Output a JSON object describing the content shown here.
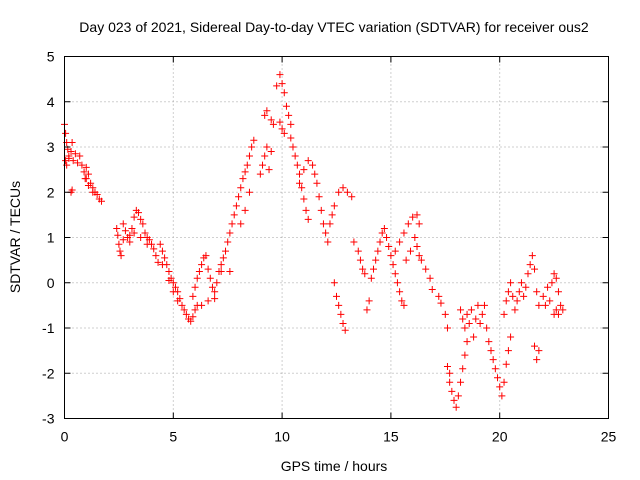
{
  "chart_data": {
    "type": "scatter",
    "title": "Day 023 of 2021, Sidereal Day-to-day VTEC variation (SDTVAR) for receiver ous2",
    "xlabel": "GPS time / hours",
    "ylabel": "SDTVAR / TECUs",
    "xlim": [
      0,
      25
    ],
    "ylim": [
      -3,
      5
    ],
    "xticks": [
      "0",
      "5",
      "10",
      "15",
      "20",
      "25"
    ],
    "yticks": [
      "-3",
      "-2",
      "-1",
      "0",
      "1",
      "2",
      "3",
      "4",
      "5"
    ],
    "grid": true,
    "marker": "+",
    "color": "#ff0000",
    "series": [
      {
        "name": "ous2",
        "points": [
          [
            0.0,
            3.5
          ],
          [
            0.05,
            3.3
          ],
          [
            0.1,
            3.1
          ],
          [
            0.15,
            2.95
          ],
          [
            0.2,
            2.8
          ],
          [
            0.05,
            2.7
          ],
          [
            0.1,
            2.6
          ],
          [
            0.2,
            2.75
          ],
          [
            0.3,
            2.9
          ],
          [
            0.35,
            3.1
          ],
          [
            0.4,
            2.7
          ],
          [
            0.5,
            2.85
          ],
          [
            0.6,
            2.65
          ],
          [
            0.3,
            2.0
          ],
          [
            0.35,
            2.05
          ],
          [
            0.7,
            2.8
          ],
          [
            0.8,
            2.6
          ],
          [
            0.9,
            2.45
          ],
          [
            0.95,
            2.3
          ],
          [
            1.0,
            2.55
          ],
          [
            1.1,
            2.4
          ],
          [
            1.2,
            2.2
          ],
          [
            1.3,
            2.1
          ],
          [
            1.4,
            2.0
          ],
          [
            1.5,
            1.95
          ],
          [
            1.6,
            1.85
          ],
          [
            1.7,
            1.8
          ],
          [
            1.0,
            2.3
          ],
          [
            1.1,
            2.15
          ],
          [
            1.3,
            2.0
          ],
          [
            2.4,
            1.2
          ],
          [
            2.45,
            1.05
          ],
          [
            2.5,
            0.85
          ],
          [
            2.55,
            0.7
          ],
          [
            2.6,
            0.6
          ],
          [
            2.7,
            1.3
          ],
          [
            2.8,
            1.15
          ],
          [
            2.9,
            1.0
          ],
          [
            3.0,
            0.9
          ],
          [
            3.1,
            1.2
          ],
          [
            3.2,
            1.45
          ],
          [
            3.3,
            1.6
          ],
          [
            3.4,
            1.55
          ],
          [
            3.5,
            1.4
          ],
          [
            3.6,
            1.3
          ],
          [
            3.7,
            1.1
          ],
          [
            3.8,
            1.0
          ],
          [
            3.9,
            0.95
          ],
          [
            4.0,
            0.85
          ],
          [
            4.1,
            0.75
          ],
          [
            2.7,
            0.95
          ],
          [
            3.0,
            1.05
          ],
          [
            3.2,
            1.1
          ],
          [
            3.5,
            1.0
          ],
          [
            3.8,
            0.85
          ],
          [
            4.2,
            0.6
          ],
          [
            4.3,
            0.45
          ],
          [
            4.4,
            0.85
          ],
          [
            4.5,
            0.7
          ],
          [
            4.6,
            0.55
          ],
          [
            4.7,
            0.4
          ],
          [
            4.8,
            0.25
          ],
          [
            4.9,
            0.1
          ],
          [
            5.0,
            0.0
          ],
          [
            5.1,
            -0.1
          ],
          [
            5.2,
            -0.2
          ],
          [
            5.3,
            -0.35
          ],
          [
            5.4,
            -0.5
          ],
          [
            4.5,
            0.4
          ],
          [
            4.8,
            0.05
          ],
          [
            5.0,
            -0.2
          ],
          [
            5.2,
            -0.4
          ],
          [
            5.5,
            -0.6
          ],
          [
            5.6,
            -0.7
          ],
          [
            5.7,
            -0.8
          ],
          [
            5.8,
            -0.85
          ],
          [
            5.9,
            -0.75
          ],
          [
            6.0,
            -0.6
          ],
          [
            6.1,
            -0.5
          ],
          [
            5.9,
            -0.3
          ],
          [
            6.0,
            -0.1
          ],
          [
            6.1,
            0.1
          ],
          [
            6.2,
            0.25
          ],
          [
            6.3,
            0.4
          ],
          [
            6.4,
            0.55
          ],
          [
            6.5,
            0.6
          ],
          [
            6.6,
            0.3
          ],
          [
            6.7,
            0.1
          ],
          [
            6.8,
            -0.1
          ],
          [
            6.9,
            -0.2
          ],
          [
            7.0,
            0.0
          ],
          [
            7.1,
            0.25
          ],
          [
            7.2,
            0.4
          ],
          [
            7.3,
            0.55
          ],
          [
            7.4,
            0.7
          ],
          [
            7.5,
            0.9
          ],
          [
            7.6,
            1.1
          ],
          [
            7.7,
            1.3
          ],
          [
            7.8,
            1.5
          ],
          [
            7.9,
            1.7
          ],
          [
            6.3,
            -0.5
          ],
          [
            6.6,
            -0.4
          ],
          [
            6.9,
            -0.35
          ],
          [
            7.2,
            0.25
          ],
          [
            7.6,
            0.25
          ],
          [
            8.0,
            1.9
          ],
          [
            8.1,
            2.1
          ],
          [
            8.2,
            2.3
          ],
          [
            8.3,
            2.45
          ],
          [
            8.4,
            2.6
          ],
          [
            8.5,
            2.8
          ],
          [
            8.6,
            3.0
          ],
          [
            8.7,
            3.15
          ],
          [
            8.1,
            1.3
          ],
          [
            8.3,
            1.6
          ],
          [
            8.5,
            2.0
          ],
          [
            9.0,
            2.4
          ],
          [
            9.1,
            2.6
          ],
          [
            9.2,
            2.8
          ],
          [
            9.3,
            3.0
          ],
          [
            9.4,
            2.5
          ],
          [
            9.2,
            3.7
          ],
          [
            9.3,
            3.8
          ],
          [
            9.5,
            3.6
          ],
          [
            9.6,
            3.5
          ],
          [
            9.5,
            2.9
          ],
          [
            9.75,
            4.35
          ],
          [
            9.9,
            3.55
          ],
          [
            10.0,
            3.4
          ],
          [
            10.1,
            3.3
          ],
          [
            9.9,
            4.6
          ],
          [
            10.0,
            4.4
          ],
          [
            10.1,
            4.2
          ],
          [
            10.2,
            3.9
          ],
          [
            10.3,
            3.7
          ],
          [
            10.4,
            3.5
          ],
          [
            10.4,
            3.2
          ],
          [
            10.5,
            3.0
          ],
          [
            10.6,
            2.8
          ],
          [
            10.7,
            2.6
          ],
          [
            10.8,
            2.4
          ],
          [
            10.9,
            2.1
          ],
          [
            11.0,
            1.85
          ],
          [
            11.1,
            1.6
          ],
          [
            11.2,
            1.4
          ],
          [
            10.8,
            2.2
          ],
          [
            11.0,
            2.5
          ],
          [
            11.2,
            2.7
          ],
          [
            11.4,
            2.6
          ],
          [
            11.5,
            2.4
          ],
          [
            11.6,
            2.2
          ],
          [
            11.7,
            1.9
          ],
          [
            11.8,
            1.6
          ],
          [
            11.9,
            1.3
          ],
          [
            12.0,
            1.1
          ],
          [
            12.1,
            0.9
          ],
          [
            12.2,
            1.3
          ],
          [
            12.3,
            1.5
          ],
          [
            12.4,
            1.7
          ],
          [
            12.6,
            2.0
          ],
          [
            12.8,
            2.1
          ],
          [
            13.0,
            2.0
          ],
          [
            13.2,
            1.9
          ],
          [
            12.5,
            -0.3
          ],
          [
            12.6,
            -0.5
          ],
          [
            12.7,
            -0.7
          ],
          [
            12.8,
            -0.9
          ],
          [
            12.9,
            -1.05
          ],
          [
            12.4,
            0.0
          ],
          [
            13.3,
            0.9
          ],
          [
            13.5,
            0.7
          ],
          [
            13.6,
            0.5
          ],
          [
            13.7,
            0.3
          ],
          [
            13.8,
            0.2
          ],
          [
            13.9,
            -0.6
          ],
          [
            14.0,
            -0.4
          ],
          [
            14.1,
            0.1
          ],
          [
            14.2,
            0.3
          ],
          [
            14.3,
            0.5
          ],
          [
            14.4,
            0.7
          ],
          [
            14.5,
            0.9
          ],
          [
            14.6,
            1.1
          ],
          [
            14.7,
            1.2
          ],
          [
            14.8,
            1.0
          ],
          [
            14.9,
            0.8
          ],
          [
            15.0,
            0.6
          ],
          [
            15.1,
            0.4
          ],
          [
            15.2,
            0.2
          ],
          [
            15.3,
            0.0
          ],
          [
            15.4,
            -0.2
          ],
          [
            15.5,
            -0.4
          ],
          [
            15.6,
            -0.5
          ],
          [
            15.2,
            0.7
          ],
          [
            15.4,
            0.9
          ],
          [
            15.6,
            1.1
          ],
          [
            15.8,
            1.3
          ],
          [
            16.0,
            1.45
          ],
          [
            16.2,
            1.5
          ],
          [
            16.3,
            1.3
          ],
          [
            16.1,
            1.0
          ],
          [
            15.9,
            0.7
          ],
          [
            15.7,
            0.5
          ],
          [
            16.2,
            0.8
          ],
          [
            16.3,
            0.6
          ],
          [
            16.4,
            0.5
          ],
          [
            16.6,
            0.3
          ],
          [
            16.8,
            0.1
          ],
          [
            16.9,
            -0.15
          ],
          [
            17.2,
            -0.3
          ],
          [
            17.3,
            -0.45
          ],
          [
            17.5,
            -0.7
          ],
          [
            17.6,
            -1.0
          ],
          [
            17.6,
            -1.85
          ],
          [
            17.7,
            -2.0
          ],
          [
            17.7,
            -2.2
          ],
          [
            17.8,
            -2.4
          ],
          [
            17.9,
            -2.6
          ],
          [
            18.0,
            -2.75
          ],
          [
            18.1,
            -2.5
          ],
          [
            18.2,
            -2.2
          ],
          [
            18.3,
            -1.9
          ],
          [
            18.4,
            -1.6
          ],
          [
            18.5,
            -1.3
          ],
          [
            18.2,
            -0.6
          ],
          [
            18.3,
            -0.8
          ],
          [
            18.4,
            -1.0
          ],
          [
            18.5,
            -0.7
          ],
          [
            18.6,
            -0.9
          ],
          [
            18.7,
            -0.6
          ],
          [
            18.8,
            -1.2
          ],
          [
            18.9,
            -0.8
          ],
          [
            19.0,
            -0.5
          ],
          [
            19.1,
            -0.9
          ],
          [
            19.2,
            -0.7
          ],
          [
            19.3,
            -0.5
          ],
          [
            19.4,
            -1.0
          ],
          [
            19.5,
            -1.3
          ],
          [
            19.6,
            -1.5
          ],
          [
            19.7,
            -1.7
          ],
          [
            19.8,
            -1.9
          ],
          [
            19.9,
            -2.1
          ],
          [
            20.0,
            -2.3
          ],
          [
            20.1,
            -2.5
          ],
          [
            20.2,
            -2.2
          ],
          [
            20.3,
            -1.8
          ],
          [
            20.4,
            -1.5
          ],
          [
            20.5,
            -1.2
          ],
          [
            20.2,
            -0.7
          ],
          [
            20.3,
            -0.4
          ],
          [
            20.4,
            -0.2
          ],
          [
            20.5,
            0.0
          ],
          [
            20.6,
            -0.3
          ],
          [
            20.7,
            -0.6
          ],
          [
            20.8,
            -0.4
          ],
          [
            20.9,
            -0.2
          ],
          [
            21.0,
            0.0
          ],
          [
            21.1,
            -0.3
          ],
          [
            21.2,
            -0.1
          ],
          [
            21.3,
            0.2
          ],
          [
            21.4,
            0.4
          ],
          [
            21.5,
            0.6
          ],
          [
            21.6,
            0.3
          ],
          [
            21.7,
            -0.2
          ],
          [
            21.8,
            -0.5
          ],
          [
            21.6,
            -1.4
          ],
          [
            21.7,
            -1.7
          ],
          [
            21.8,
            -1.5
          ],
          [
            22.0,
            -0.3
          ],
          [
            22.2,
            -0.1
          ],
          [
            22.4,
            0.0
          ],
          [
            22.5,
            0.2
          ],
          [
            22.6,
            0.1
          ],
          [
            22.7,
            -0.2
          ],
          [
            22.8,
            -0.5
          ],
          [
            22.9,
            -0.6
          ],
          [
            22.3,
            -0.4
          ],
          [
            22.6,
            -0.6
          ],
          [
            22.7,
            -0.7
          ],
          [
            22.1,
            -0.5
          ],
          [
            22.5,
            -0.7
          ]
        ]
      }
    ]
  }
}
